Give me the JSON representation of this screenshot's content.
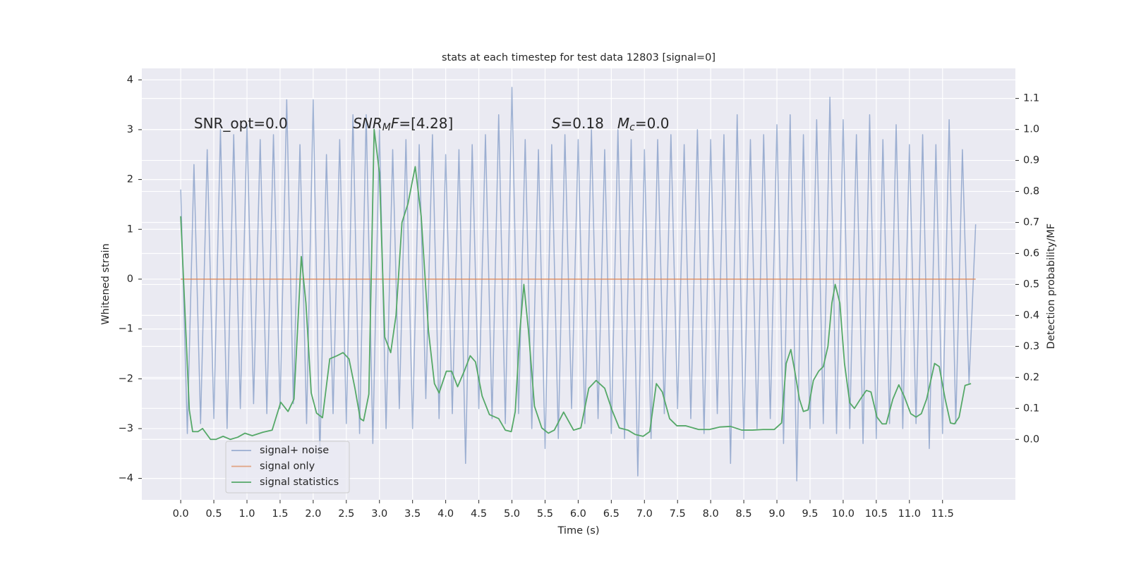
{
  "chart_data": {
    "type": "line",
    "title": "stats at each timestep for test data 12803 [signal=0]",
    "x_label": "Time (s)",
    "y_label": "Whitened strain",
    "y2_label": "Detection probability/MF",
    "xlim": [
      -0.587,
      12.6
    ],
    "ylim": [
      -4.43,
      4.23
    ],
    "y2lim": [
      -0.195,
      1.197
    ],
    "xticks": [
      {
        "value": 0,
        "label": "0.0"
      },
      0.5,
      {
        "value": 1,
        "label": "1.0"
      },
      1.5,
      {
        "value": 2,
        "label": "2.0"
      },
      2.5,
      {
        "value": 3,
        "label": "3.0"
      },
      3.5,
      {
        "value": 4,
        "label": "4.0"
      },
      4.5,
      {
        "value": 5,
        "label": "5.0"
      },
      5.5,
      {
        "value": 6,
        "label": "6.0"
      },
      6.5,
      {
        "value": 7,
        "label": "7.0"
      },
      7.5,
      {
        "value": 8,
        "label": "8.0"
      },
      8.5,
      {
        "value": 9,
        "label": "9.0"
      },
      9.5,
      {
        "value": 10,
        "label": "10.0"
      },
      10.5,
      {
        "value": 11,
        "label": "11.0"
      },
      11.5
    ],
    "yticks": [
      {
        "value": -4,
        "label": "−4"
      },
      {
        "value": -3,
        "label": "−3"
      },
      {
        "value": -2,
        "label": "−2"
      },
      {
        "value": -1,
        "label": "−1"
      },
      0,
      1,
      2,
      3,
      4
    ],
    "y2ticks": [
      {
        "value": 0,
        "label": "0.0"
      },
      0.1,
      0.2,
      0.3,
      0.4,
      0.5,
      0.6,
      0.7,
      0.8,
      0.9,
      {
        "value": 1,
        "label": "1.0"
      },
      1.1
    ],
    "grid": true,
    "legend": "lower left",
    "annotations": [
      {
        "x": 0.2,
        "y": 3.0,
        "segments": [
          {
            "text": "SNR_opt=0.0"
          }
        ]
      },
      {
        "x": 2.6,
        "y": 3.0,
        "segments": [
          {
            "text": "SNR",
            "style": "italic"
          },
          {
            "text": "M",
            "style": "italic-sub"
          },
          {
            "text": "F",
            "style": "italic"
          },
          {
            "text": "=[4.28]"
          }
        ]
      },
      {
        "x": 5.6,
        "y": 3.0,
        "segments": [
          {
            "text": "S",
            "style": "italic"
          },
          {
            "text": "=0.18   "
          },
          {
            "text": "M",
            "style": "italic"
          },
          {
            "text": "c",
            "style": "italic-sub"
          },
          {
            "text": "=0.0"
          }
        ]
      }
    ],
    "series": [
      {
        "name": "signal+ noise",
        "color": "#4c72b0",
        "opacity": 0.5,
        "x": [
          0.0,
          0.1,
          0.2,
          0.3,
          0.4,
          0.5,
          0.6,
          0.7,
          0.8,
          0.9,
          1.0,
          1.1,
          1.2,
          1.3,
          1.4,
          1.5,
          1.6,
          1.7,
          1.8,
          1.9,
          2.0,
          2.1,
          2.2,
          2.3,
          2.4,
          2.5,
          2.6,
          2.7,
          2.8,
          2.9,
          3.0,
          3.1,
          3.2,
          3.3,
          3.4,
          3.5,
          3.6,
          3.7,
          3.8,
          3.9,
          4.0,
          4.1,
          4.2,
          4.3,
          4.4,
          4.5,
          4.6,
          4.7,
          4.8,
          4.9,
          5.0,
          5.1,
          5.2,
          5.3,
          5.4,
          5.5,
          5.6,
          5.7,
          5.8,
          5.9,
          6.0,
          6.1,
          6.2,
          6.3,
          6.4,
          6.5,
          6.6,
          6.7,
          6.8,
          6.9,
          7.0,
          7.1,
          7.2,
          7.3,
          7.4,
          7.5,
          7.6,
          7.7,
          7.8,
          7.9,
          8.0,
          8.1,
          8.2,
          8.3,
          8.4,
          8.5,
          8.6,
          8.7,
          8.8,
          8.9,
          9.0,
          9.1,
          9.2,
          9.3,
          9.4,
          9.5,
          9.6,
          9.7,
          9.8,
          9.9,
          10.0,
          10.1,
          10.2,
          10.3,
          10.4,
          10.5,
          10.6,
          10.7,
          10.8,
          10.9,
          11.0,
          11.1,
          11.2,
          11.3,
          11.4,
          11.5,
          11.6,
          11.7,
          11.8,
          11.9,
          12.0
        ],
        "values": [
          1.8,
          -3.1,
          2.3,
          -2.9,
          2.6,
          -2.8,
          3.0,
          -3.0,
          2.9,
          -2.6,
          3.1,
          -2.5,
          2.8,
          -2.7,
          2.9,
          -2.6,
          3.6,
          -2.5,
          2.7,
          -2.9,
          3.6,
          -3.6,
          2.5,
          -2.7,
          2.8,
          -2.9,
          3.3,
          -3.1,
          3.3,
          -3.3,
          3.0,
          -3.0,
          2.6,
          -2.6,
          2.8,
          -3.0,
          2.7,
          -2.4,
          2.9,
          -2.8,
          2.5,
          -2.7,
          2.6,
          -3.7,
          2.7,
          -2.6,
          2.9,
          -2.8,
          3.3,
          -2.9,
          3.85,
          -2.7,
          2.8,
          -3.0,
          2.6,
          -3.4,
          2.7,
          -3.2,
          2.9,
          -2.6,
          2.8,
          -2.9,
          3.0,
          -2.8,
          2.6,
          -3.1,
          3.0,
          -3.2,
          2.8,
          -3.95,
          2.6,
          -3.2,
          2.8,
          -2.7,
          2.9,
          -2.6,
          2.7,
          -2.8,
          3.0,
          -3.1,
          2.8,
          -2.7,
          2.9,
          -3.7,
          3.3,
          -3.2,
          2.8,
          -3.0,
          2.9,
          -2.8,
          3.1,
          -3.3,
          3.3,
          -4.05,
          2.9,
          -3.0,
          3.2,
          -2.9,
          3.65,
          -3.1,
          3.2,
          -3.0,
          2.9,
          -3.3,
          3.3,
          -3.2,
          2.8,
          -2.9,
          3.1,
          -3.0,
          2.7,
          -2.9,
          2.9,
          -3.4,
          2.7,
          -3.1,
          3.2,
          -2.9,
          2.6,
          -2.1,
          1.1
        ]
      },
      {
        "name": "signal only",
        "color": "#dd8452",
        "opacity": 0.7,
        "x": [
          0.0,
          12.0
        ],
        "values": [
          0,
          0
        ]
      },
      {
        "name": "signal statistics",
        "color": "#55a868",
        "opacity": 1,
        "axis": "y2",
        "x": [
          0,
          0.13,
          0.18,
          0.26,
          0.33,
          0.45,
          0.53,
          0.64,
          0.75,
          0.86,
          0.97,
          1.08,
          1.24,
          1.38,
          1.51,
          1.62,
          1.71,
          1.82,
          1.89,
          1.97,
          2.05,
          2.14,
          2.25,
          2.36,
          2.45,
          2.54,
          2.63,
          2.71,
          2.76,
          2.84,
          2.92,
          3.0,
          3.08,
          3.17,
          3.25,
          3.34,
          3.43,
          3.54,
          3.63,
          3.74,
          3.83,
          3.9,
          4.01,
          4.09,
          4.18,
          4.28,
          4.37,
          4.45,
          4.55,
          4.66,
          4.8,
          4.9,
          4.99,
          5.05,
          5.12,
          5.18,
          5.25,
          5.34,
          5.45,
          5.55,
          5.64,
          5.78,
          5.93,
          6.04,
          6.16,
          6.27,
          6.4,
          6.51,
          6.62,
          6.75,
          6.86,
          6.98,
          7.08,
          7.18,
          7.27,
          7.38,
          7.49,
          7.62,
          7.82,
          7.98,
          8.14,
          8.3,
          8.47,
          8.63,
          8.79,
          8.96,
          9.07,
          9.14,
          9.21,
          9.27,
          9.34,
          9.4,
          9.47,
          9.55,
          9.63,
          9.7,
          9.77,
          9.83,
          9.88,
          9.95,
          10.02,
          10.1,
          10.17,
          10.26,
          10.35,
          10.42,
          10.51,
          10.59,
          10.65,
          10.75,
          10.84,
          10.92,
          11.02,
          11.1,
          11.18,
          11.26,
          11.38,
          11.45,
          11.54,
          11.62,
          11.68,
          11.75,
          11.84,
          11.93
        ],
        "values": [
          0.72,
          0.095,
          0.025,
          0.025,
          0.035,
          0.0,
          0.0,
          0.01,
          0.0,
          0.007,
          0.02,
          0.012,
          0.023,
          0.03,
          0.12,
          0.09,
          0.13,
          0.59,
          0.44,
          0.15,
          0.085,
          0.07,
          0.26,
          0.27,
          0.28,
          0.26,
          0.165,
          0.067,
          0.06,
          0.146,
          1.0,
          0.86,
          0.33,
          0.28,
          0.4,
          0.7,
          0.76,
          0.88,
          0.72,
          0.35,
          0.18,
          0.15,
          0.22,
          0.22,
          0.17,
          0.22,
          0.27,
          0.25,
          0.14,
          0.08,
          0.067,
          0.03,
          0.025,
          0.09,
          0.35,
          0.5,
          0.35,
          0.107,
          0.037,
          0.02,
          0.03,
          0.088,
          0.03,
          0.037,
          0.165,
          0.19,
          0.165,
          0.095,
          0.037,
          0.03,
          0.016,
          0.01,
          0.025,
          0.18,
          0.153,
          0.067,
          0.044,
          0.044,
          0.032,
          0.032,
          0.04,
          0.042,
          0.03,
          0.03,
          0.032,
          0.032,
          0.053,
          0.245,
          0.29,
          0.22,
          0.13,
          0.09,
          0.095,
          0.19,
          0.22,
          0.235,
          0.3,
          0.44,
          0.5,
          0.44,
          0.245,
          0.118,
          0.1,
          0.13,
          0.158,
          0.153,
          0.072,
          0.05,
          0.05,
          0.13,
          0.176,
          0.14,
          0.083,
          0.072,
          0.083,
          0.13,
          0.245,
          0.235,
          0.13,
          0.053,
          0.05,
          0.072,
          0.174,
          0.18
        ]
      }
    ]
  }
}
